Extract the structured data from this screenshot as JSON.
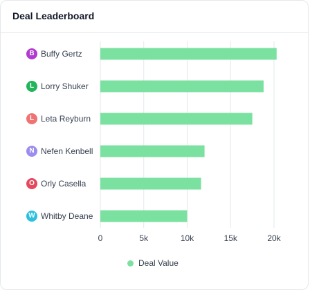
{
  "card": {
    "title": "Deal Leaderboard"
  },
  "chart_data": {
    "type": "bar",
    "orientation": "horizontal",
    "categories": [
      "Buffy Gertz",
      "Lorry Shuker",
      "Leta Reyburn",
      "Nefen Kenbell",
      "Orly Casella",
      "Whitby Deane"
    ],
    "series": [
      {
        "name": "Deal Value",
        "color": "#7be1a0",
        "values": [
          20300,
          18800,
          17500,
          12000,
          11600,
          10000
        ]
      }
    ],
    "xlim": [
      0,
      20000
    ],
    "x_ticks": [
      "0",
      "5k",
      "10k",
      "15k",
      "20k"
    ],
    "grid": "vertical",
    "legend_position": "bottom"
  },
  "reps": [
    {
      "initial": "B",
      "name": "Buffy Gertz",
      "color": "#b13ad1"
    },
    {
      "initial": "L",
      "name": "Lorry Shuker",
      "color": "#22b55a"
    },
    {
      "initial": "L",
      "name": "Leta Reyburn",
      "color": "#f07373"
    },
    {
      "initial": "N",
      "name": "Nefen Kenbell",
      "color": "#9b8cef"
    },
    {
      "initial": "O",
      "name": "Orly Casella",
      "color": "#e5485f"
    },
    {
      "initial": "W",
      "name": "Whitby Deane",
      "color": "#2bc0df"
    }
  ],
  "legend": {
    "label": "Deal Value",
    "color": "#7be1a0"
  }
}
